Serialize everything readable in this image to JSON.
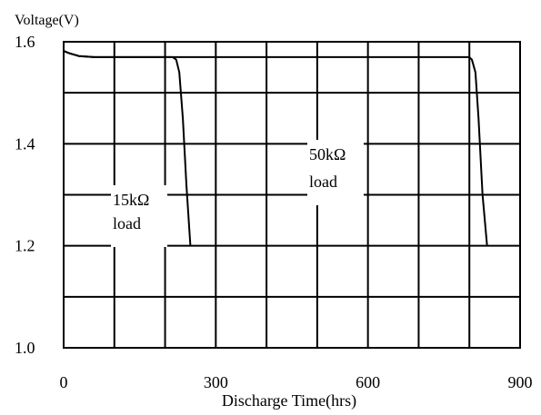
{
  "chart_data": {
    "type": "line",
    "ylabel": "Voltage(V)",
    "xlabel": "Discharge Time(hrs)",
    "xlim": [
      0,
      900
    ],
    "ylim": [
      1.0,
      1.6
    ],
    "x_ticks": [
      "0",
      "300",
      "600",
      "900"
    ],
    "x_tick_values": [
      0,
      300,
      600,
      900
    ],
    "y_ticks": [
      "1.6",
      "1.4",
      "1.2",
      "1.0"
    ],
    "y_tick_values": [
      1.6,
      1.4,
      1.2,
      1.0
    ],
    "grid": true,
    "series": [
      {
        "name": "15kΩ load",
        "label_line1": "15kΩ",
        "label_line2": "load",
        "x": [
          0,
          10,
          30,
          60,
          100,
          150,
          200,
          215,
          222,
          228,
          235,
          242,
          250
        ],
        "y": [
          1.582,
          1.578,
          1.572,
          1.57,
          1.57,
          1.57,
          1.57,
          1.57,
          1.565,
          1.54,
          1.45,
          1.32,
          1.2
        ]
      },
      {
        "name": "50kΩ load",
        "label_line1": "50kΩ",
        "label_line2": "load",
        "x": [
          0,
          10,
          30,
          60,
          100,
          200,
          400,
          600,
          780,
          800,
          805,
          812,
          818,
          826,
          835
        ],
        "y": [
          1.582,
          1.578,
          1.572,
          1.57,
          1.57,
          1.57,
          1.57,
          1.57,
          1.57,
          1.57,
          1.565,
          1.54,
          1.45,
          1.3,
          1.2
        ]
      }
    ]
  }
}
